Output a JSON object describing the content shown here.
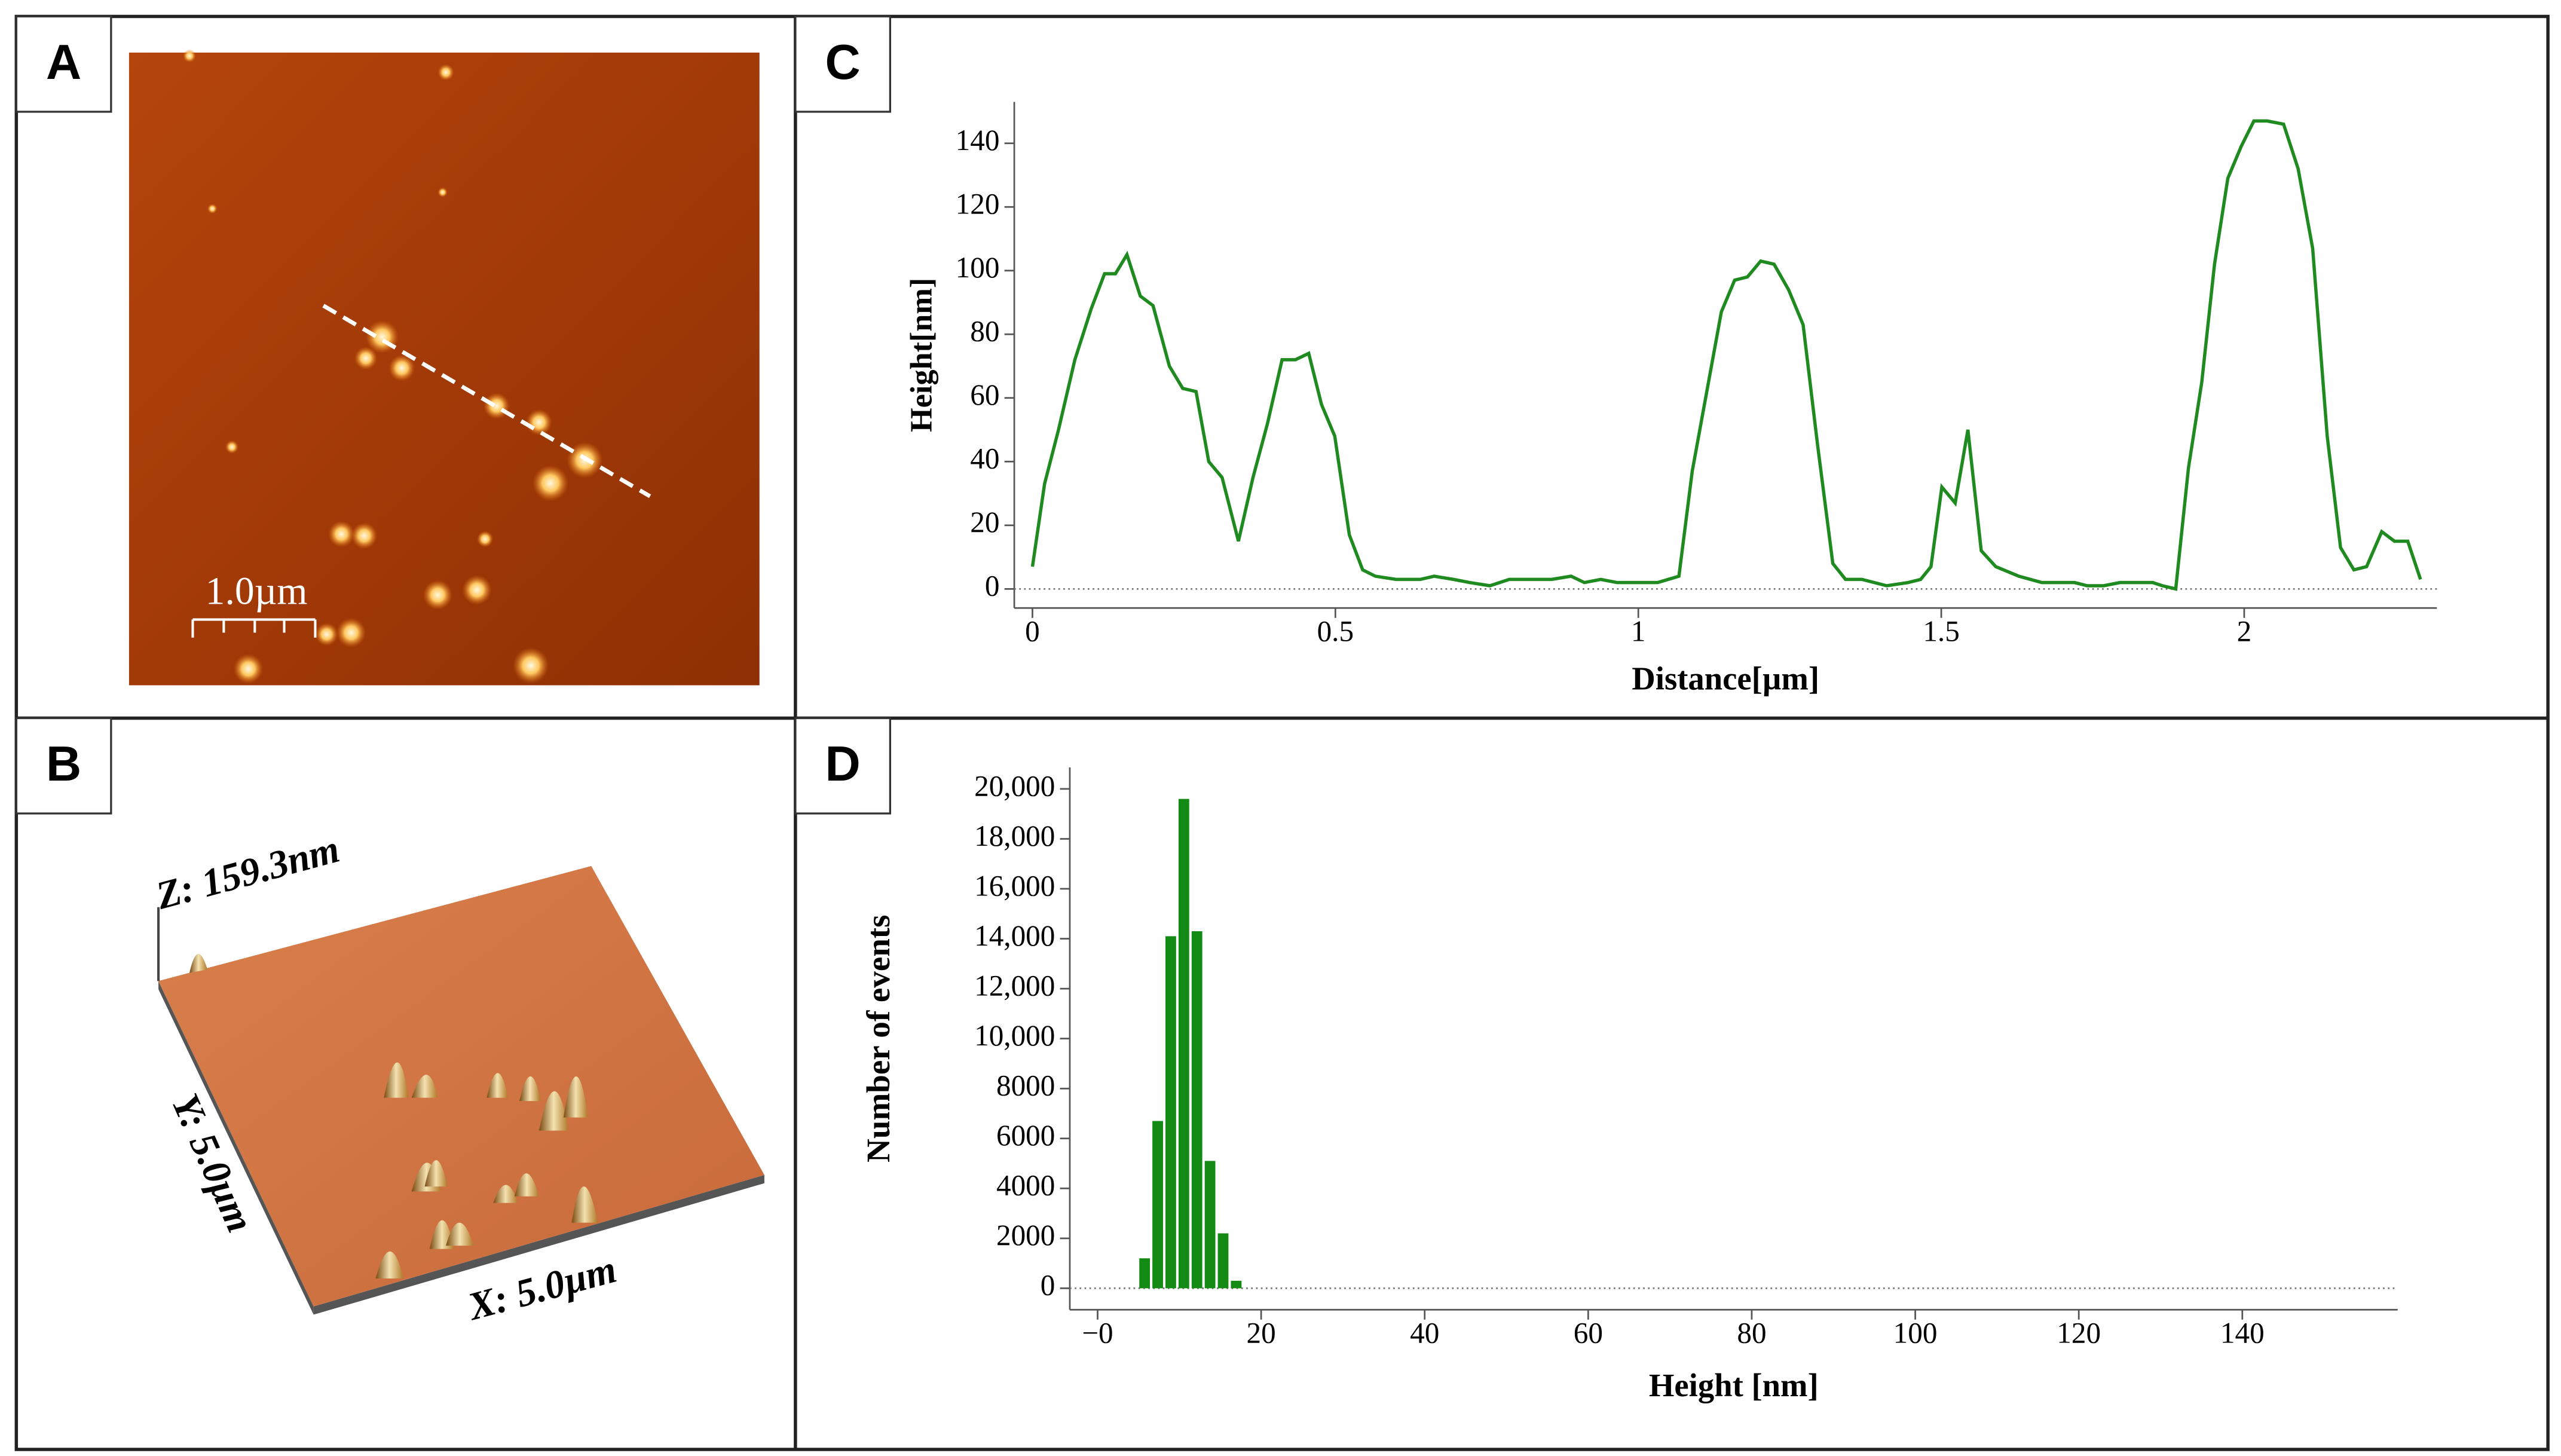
{
  "panels": {
    "A": {
      "label": "A",
      "scale_bar": "1.0µm"
    },
    "B": {
      "label": "B",
      "z": "Z: 159.3nm",
      "y": "Y: 5.0µm",
      "x": "X: 5.0µm"
    },
    "C": {
      "label": "C"
    },
    "D": {
      "label": "D"
    }
  },
  "chart_data": [
    {
      "type": "line",
      "xlabel": "Distance[µm]",
      "ylabel": "Height[nm]",
      "color": "#1f8a1f",
      "x": [
        0,
        0.02,
        0.043,
        0.07,
        0.097,
        0.119,
        0.137,
        0.156,
        0.178,
        0.199,
        0.226,
        0.248,
        0.27,
        0.291,
        0.313,
        0.34,
        0.364,
        0.388,
        0.412,
        0.434,
        0.456,
        0.477,
        0.499,
        0.523,
        0.545,
        0.566,
        0.6,
        0.64,
        0.663,
        0.695,
        0.722,
        0.755,
        0.787,
        0.819,
        0.857,
        0.889,
        0.911,
        0.938,
        0.965,
        1.0,
        1.032,
        1.067,
        1.089,
        1.113,
        1.137,
        1.159,
        1.18,
        1.202,
        1.224,
        1.248,
        1.272,
        1.296,
        1.321,
        1.342,
        1.369,
        1.41,
        1.445,
        1.466,
        1.483,
        1.501,
        1.523,
        1.544,
        1.566,
        1.59,
        1.628,
        1.666,
        1.698,
        1.72,
        1.741,
        1.768,
        1.795,
        1.827,
        1.849,
        1.865,
        1.887,
        1.908,
        1.93,
        1.951,
        1.973,
        1.995,
        2.016,
        2.038,
        2.065,
        2.089,
        2.113,
        2.137,
        2.159,
        2.181,
        2.202,
        2.227,
        2.248,
        2.27,
        2.291
      ],
      "values": [
        7,
        33,
        50,
        72,
        88,
        99,
        99,
        105,
        92,
        89,
        70,
        63,
        62,
        40,
        35,
        15,
        35,
        52,
        72,
        72,
        74,
        58,
        48,
        17,
        6,
        4,
        3,
        3,
        4,
        3,
        2,
        1,
        3,
        3,
        3,
        4,
        2,
        3,
        2,
        2,
        2,
        4,
        37,
        62,
        87,
        97,
        98,
        103,
        102,
        94,
        83,
        45,
        8,
        3,
        3,
        1,
        2,
        3,
        7,
        32,
        27,
        50,
        12,
        7,
        4,
        2,
        2,
        2,
        1,
        1,
        2,
        2,
        2,
        1,
        0,
        38,
        65,
        102,
        129,
        139,
        147,
        147,
        146,
        132,
        107,
        48,
        13,
        6,
        7,
        18,
        15,
        15,
        3
      ],
      "xlim": [
        -0.03,
        2.318
      ],
      "ylim": [
        -6,
        153
      ],
      "xticks": [
        0,
        0.5,
        1,
        1.5,
        2
      ],
      "yticks": [
        0,
        20,
        40,
        60,
        80,
        100,
        120,
        140
      ]
    },
    {
      "type": "histogram",
      "xlabel": "Height [nm]",
      "ylabel": "Number of events",
      "color": "#138a13",
      "bins": [
        5,
        6.6,
        8.2,
        9.8,
        11.4,
        13,
        14.6,
        16.2,
        17.8
      ],
      "values": [
        1200,
        6700,
        14100,
        19600,
        14300,
        5100,
        2200,
        300
      ],
      "xlim": [
        -3.4,
        159
      ],
      "ylim": [
        -860,
        20860
      ],
      "xticks": [
        {
          "value": 0,
          "label": "−0"
        },
        20,
        40,
        60,
        80,
        100,
        120,
        140
      ],
      "yticks": [
        0,
        2000,
        4000,
        6000,
        8000,
        {
          "value": 10000,
          "label": "10,000"
        },
        {
          "value": 12000,
          "label": "12,000"
        },
        {
          "value": 14000,
          "label": "14,000"
        },
        {
          "value": 16000,
          "label": "16,000"
        },
        {
          "value": 18000,
          "label": "18,000"
        },
        {
          "value": 20000,
          "label": "20,000"
        }
      ]
    }
  ]
}
